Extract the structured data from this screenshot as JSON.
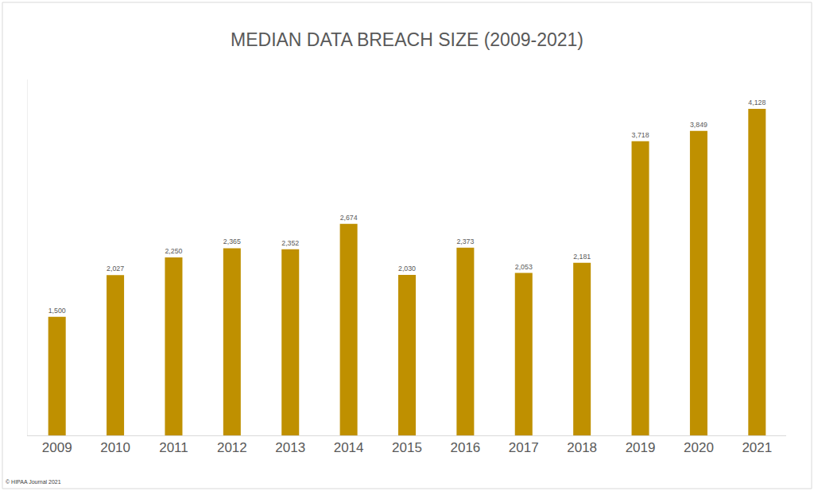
{
  "chart_data": {
    "type": "bar",
    "title": "MEDIAN DATA BREACH SIZE (2009-2021)",
    "categories": [
      "2009",
      "2010",
      "2011",
      "2012",
      "2013",
      "2014",
      "2015",
      "2016",
      "2017",
      "2018",
      "2019",
      "2020",
      "2021"
    ],
    "values": [
      1500,
      2027,
      2250,
      2365,
      2352,
      2674,
      2030,
      2373,
      2053,
      2181,
      3718,
      3849,
      4128
    ],
    "value_labels": [
      "1,500",
      "2,027",
      "2,250",
      "2,365",
      "2,352",
      "2,674",
      "2,030",
      "2,373",
      "2,053",
      "2,181",
      "3,718",
      "3,849",
      "4,128"
    ],
    "data_labels": true,
    "color": "#bf9000",
    "ylim": [
      0,
      4500
    ],
    "grid": false,
    "tick_labels": "x",
    "annotations": [
      "© HIPAA Journal 2021"
    ]
  }
}
